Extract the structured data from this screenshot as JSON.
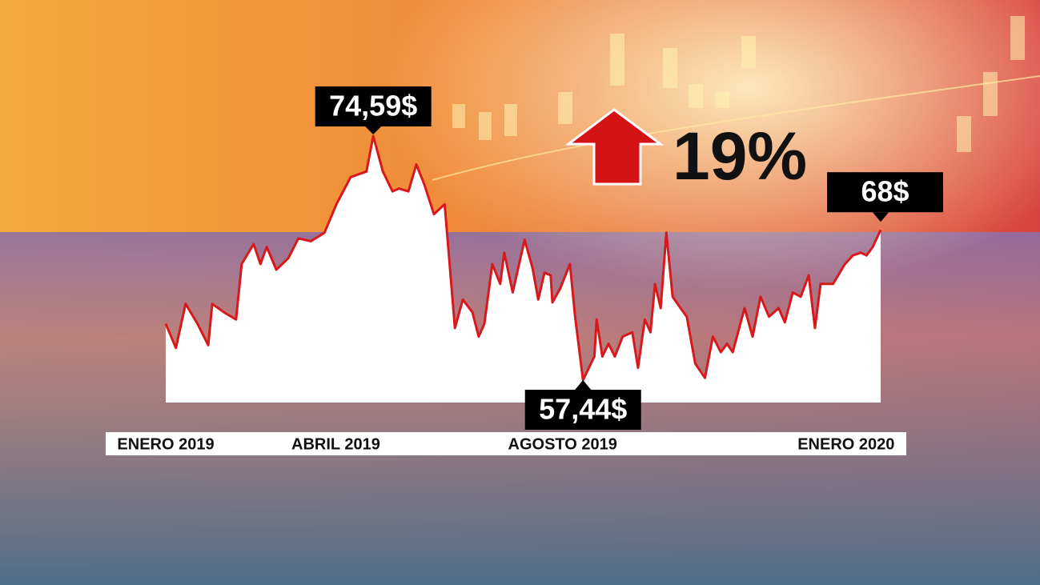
{
  "chart_data": {
    "type": "area",
    "annotation": "19%",
    "x": [
      0,
      0.18,
      0.35,
      0.56,
      0.75,
      0.82,
      1.03,
      1.24,
      1.34,
      1.55,
      1.67,
      1.78,
      1.95,
      2.16,
      2.34,
      2.56,
      2.8,
      3.01,
      3.26,
      3.54,
      3.66,
      3.83,
      4.0,
      4.11,
      4.28,
      4.42,
      4.56,
      4.73,
      4.92,
      5.1,
      5.24,
      5.41,
      5.52,
      5.62,
      5.76,
      5.9,
      5.97,
      6.12,
      6.33,
      6.47,
      6.57,
      6.68,
      6.79,
      6.82,
      6.96,
      7.13,
      7.22,
      7.36,
      7.56,
      7.6,
      7.7,
      7.81,
      7.92,
      8.06,
      8.23,
      8.33,
      8.45,
      8.55,
      8.63,
      8.73,
      8.83,
      8.94,
      9.08,
      9.19,
      9.34,
      9.51,
      9.65,
      9.79,
      9.9,
      10.0,
      10.21,
      10.35,
      10.49,
      10.64,
      10.81,
      10.92,
      11.06,
      11.2,
      11.34,
      11.45,
      11.55,
      11.77,
      11.98,
      12.12,
      12.26,
      12.36,
      12.47,
      12.61
    ],
    "values": [
      61.4,
      59.7,
      62.8,
      61.4,
      59.9,
      62.8,
      62.2,
      61.7,
      65.6,
      67.0,
      65.6,
      66.8,
      65.2,
      66.0,
      67.4,
      67.2,
      67.8,
      69.8,
      71.7,
      72.1,
      74.59,
      72.1,
      70.7,
      70.9,
      70.7,
      72.6,
      71.2,
      69.1,
      69.8,
      61.1,
      63.1,
      62.2,
      60.5,
      61.4,
      65.6,
      64.2,
      66.4,
      63.6,
      67.3,
      65.3,
      63.1,
      65.0,
      64.8,
      62.9,
      63.9,
      65.6,
      61.9,
      57.44,
      59.1,
      61.7,
      59.1,
      60.0,
      59.1,
      60.5,
      60.8,
      58.3,
      61.7,
      60.8,
      64.2,
      62.5,
      67.8,
      63.3,
      62.5,
      61.9,
      58.6,
      57.6,
      60.5,
      59.4,
      60.0,
      59.4,
      62.5,
      60.5,
      63.3,
      61.9,
      62.5,
      61.5,
      63.6,
      63.3,
      64.8,
      61.1,
      64.2,
      64.2,
      65.6,
      66.2,
      66.4,
      66.2,
      66.8,
      68
    ],
    "value_labels": [
      null,
      null,
      null,
      null,
      null,
      null,
      null,
      null,
      null,
      null,
      null,
      null,
      null,
      null,
      null,
      null,
      null,
      null,
      null,
      null,
      "74,59$",
      null,
      null,
      null,
      null,
      null,
      null,
      null,
      null,
      null,
      null,
      null,
      null,
      null,
      null,
      null,
      null,
      null,
      null,
      null,
      null,
      null,
      null,
      null,
      null,
      null,
      null,
      "57,44$",
      null,
      null,
      null,
      null,
      null,
      null,
      null,
      null,
      null,
      null,
      null,
      null,
      null,
      null,
      null,
      null,
      null,
      null,
      null,
      null,
      null,
      null,
      null,
      null,
      null,
      null,
      null,
      null,
      null,
      null,
      null,
      null,
      null,
      null,
      null,
      null,
      null,
      null,
      null,
      "68$"
    ],
    "xticks": [
      {
        "value": 0,
        "label": "ENERO 2019"
      },
      {
        "value": 3,
        "label": "ABRIL 2019"
      },
      {
        "value": 7,
        "label": "AGOSTO 2019"
      },
      {
        "value": 12,
        "label": "ENERO 2020"
      }
    ],
    "line_color": "#d7191c",
    "fill_color": "#ffffff"
  }
}
